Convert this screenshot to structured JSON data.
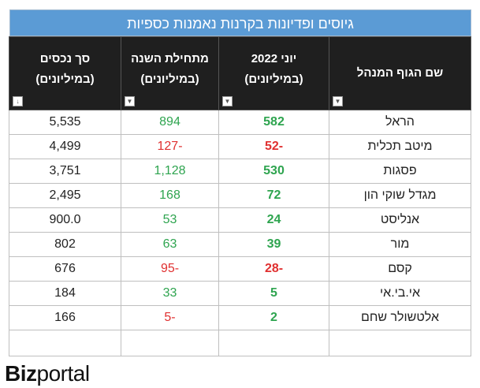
{
  "title": "גיוסים ופדיונות בקרנות נאמנות כספיות",
  "headers": {
    "manager": "שם הגוף המנהל",
    "june_l1": "יוני 2022",
    "june_l2": "(במיליונים)",
    "ytd_l1": "מתחילת השנה",
    "ytd_l2": "(במיליונים)",
    "assets_l1": "סך נכסים",
    "assets_l2": "(במיליונים)"
  },
  "filter_icons": {
    "dropdown": "dropdown-arrow-icon",
    "sorted": "sort-descending-icon"
  },
  "rows": [
    {
      "manager": "הראל",
      "june": "582",
      "ytd": "894",
      "assets": "5,535"
    },
    {
      "manager": "מיטב תכלית",
      "june": "-52",
      "ytd": "-127",
      "assets": "4,499"
    },
    {
      "manager": "פסגות",
      "june": "530",
      "ytd": "1,128",
      "assets": "3,751"
    },
    {
      "manager": "מגדל שוקי הון",
      "june": "72",
      "ytd": "168",
      "assets": "2,495"
    },
    {
      "manager": "אנליסט",
      "june": "24",
      "ytd": "53",
      "assets": "900.0"
    },
    {
      "manager": "מור",
      "june": "39",
      "ytd": "63",
      "assets": "802"
    },
    {
      "manager": "קסם",
      "june": "-28",
      "ytd": "-95",
      "assets": "676"
    },
    {
      "manager": "אי.בי.אי",
      "june": "5",
      "ytd": "33",
      "assets": "184"
    },
    {
      "manager": "אלטשולר שחם",
      "june": "2",
      "ytd": "-5",
      "assets": "166"
    }
  ],
  "colors": {
    "title_bg": "#5b9bd5",
    "header_bg": "#1f1f1f",
    "positive": "#2ea44f",
    "negative": "#e03030"
  },
  "logo": {
    "bold": "Biz",
    "light": "portal"
  }
}
